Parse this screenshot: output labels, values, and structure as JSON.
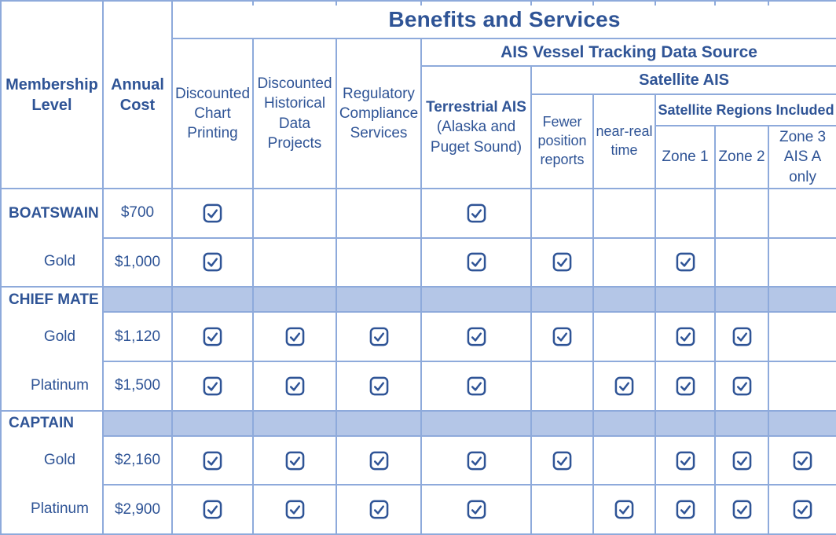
{
  "table": {
    "title": "Benefits and Services",
    "columns": {
      "membership_level": "Membership Level",
      "annual_cost": "Annual Cost",
      "chart_printing": "Discounted Chart Printing",
      "historical_data": "Discounted Historical Data Projects",
      "regulatory": "Regulatory Compliance Services",
      "ais_group": "AIS Vessel Tracking Data Source",
      "terrestrial_title": "Terrestrial AIS",
      "terrestrial_sub": "(Alaska and Puget Sound)",
      "satellite_group": "Satellite AIS",
      "fewer_position": "Fewer position reports",
      "near_real": "near-real time",
      "regions_group": "Satellite Regions Included",
      "zone1": "Zone 1",
      "zone2": "Zone 2",
      "zone3": "Zone 3 AIS A only"
    },
    "benefit_order": [
      "chart_printing",
      "historical_data",
      "regulatory",
      "terrestrial",
      "fewer_position",
      "near_real",
      "zone1",
      "zone2",
      "zone3"
    ],
    "rows": [
      {
        "type": "data",
        "level": "BOATSWAIN",
        "level_style": "group",
        "cost": "$700",
        "checks": [
          true,
          false,
          false,
          true,
          false,
          false,
          false,
          false,
          false
        ]
      },
      {
        "type": "data",
        "level": "Gold",
        "level_style": "tier",
        "cost": "$1,000",
        "checks": [
          true,
          false,
          false,
          true,
          true,
          false,
          true,
          false,
          false
        ]
      },
      {
        "type": "band",
        "level": "CHIEF MATE"
      },
      {
        "type": "data",
        "level": "Gold",
        "level_style": "tier",
        "cost": "$1,120",
        "checks": [
          true,
          true,
          true,
          true,
          true,
          false,
          true,
          true,
          false
        ]
      },
      {
        "type": "data",
        "level": "Platinum",
        "level_style": "tier",
        "cost": "$1,500",
        "checks": [
          true,
          true,
          true,
          true,
          false,
          true,
          true,
          true,
          false
        ]
      },
      {
        "type": "band",
        "level": "CAPTAIN"
      },
      {
        "type": "data",
        "level": "Gold",
        "level_style": "tier",
        "cost": "$2,160",
        "checks": [
          true,
          true,
          true,
          true,
          true,
          false,
          true,
          true,
          true
        ]
      },
      {
        "type": "data",
        "level": "Platinum",
        "level_style": "tier",
        "cost": "$2,900",
        "checks": [
          true,
          true,
          true,
          true,
          false,
          true,
          true,
          true,
          true
        ]
      }
    ]
  },
  "icons": {
    "checked": "checkbox-checked-icon"
  },
  "colors": {
    "text": "#2F5496",
    "border": "#8EAADB",
    "band": "#B4C6E7",
    "background": "#FFFFFF"
  }
}
